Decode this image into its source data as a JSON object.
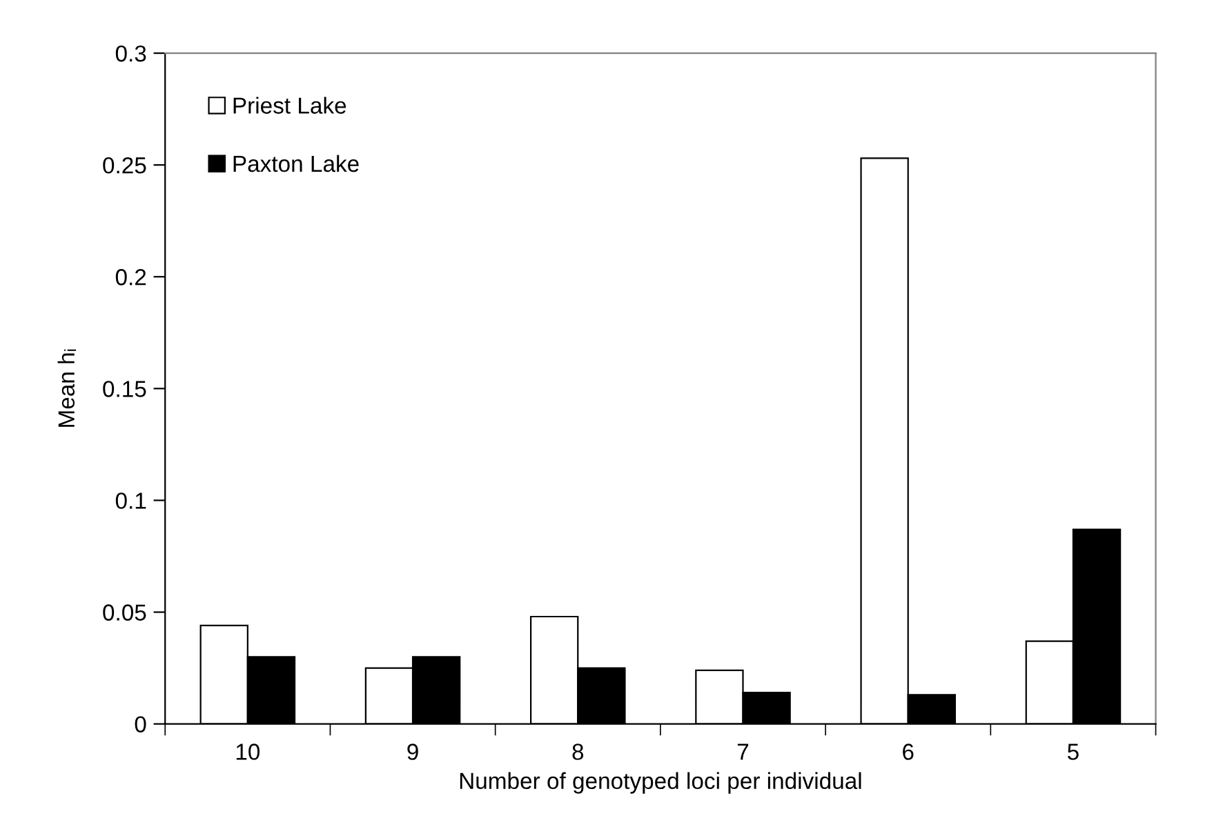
{
  "chart_data": {
    "type": "bar",
    "xlabel": "Number of genotyped loci per individual",
    "ylabel": "Mean hᵢ",
    "categories": [
      "10",
      "9",
      "8",
      "7",
      "6",
      "5"
    ],
    "series": [
      {
        "name": "Priest Lake",
        "color": "#ffffff",
        "values": [
          0.044,
          0.025,
          0.048,
          0.024,
          0.253,
          0.037
        ]
      },
      {
        "name": "Paxton Lake",
        "color": "#000000",
        "values": [
          0.03,
          0.03,
          0.025,
          0.014,
          0.013,
          0.087
        ]
      }
    ],
    "ylim": [
      0,
      0.3
    ],
    "yticks": [
      0,
      0.05,
      0.1,
      0.15,
      0.2,
      0.25,
      0.3
    ],
    "grid": false,
    "legend": "top left"
  }
}
